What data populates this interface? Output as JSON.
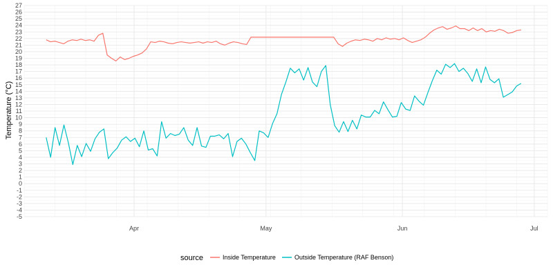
{
  "chart_data": {
    "type": "line",
    "title": "",
    "xlabel": "",
    "ylabel": "Temperature (°C)",
    "x_start": "2021-03-12",
    "x_end": "2021-06-28",
    "xlim": [
      "2021-03-07",
      "2021-07-04"
    ],
    "ylim": [
      -5,
      27
    ],
    "grid": true,
    "legend_position": "bottom",
    "legend_title": "source",
    "x_ticks": [
      {
        "date": "2021-04-01",
        "label": "Apr"
      },
      {
        "date": "2021-05-01",
        "label": "May"
      },
      {
        "date": "2021-06-01",
        "label": "Jun"
      },
      {
        "date": "2021-07-01",
        "label": "Jul"
      }
    ],
    "y_ticks": [
      -5,
      -4,
      -3,
      -2,
      -1,
      0,
      1,
      2,
      3,
      4,
      5,
      6,
      7,
      8,
      9,
      10,
      11,
      12,
      13,
      14,
      15,
      16,
      17,
      18,
      19,
      20,
      21,
      22,
      23,
      24,
      25,
      26,
      27
    ],
    "series": [
      {
        "name": "Inside Temperature",
        "color": "#F8766D",
        "values": [
          21.8,
          21.5,
          21.6,
          21.4,
          21.2,
          21.6,
          21.8,
          21.7,
          21.9,
          21.7,
          21.8,
          21.6,
          22.5,
          22.8,
          19.5,
          19.0,
          18.6,
          19.2,
          18.8,
          19.0,
          19.3,
          19.5,
          19.8,
          20.4,
          21.5,
          21.4,
          21.6,
          21.5,
          21.3,
          21.2,
          21.4,
          21.5,
          21.4,
          21.3,
          21.4,
          21.5,
          21.3,
          21.5,
          21.4,
          21.6,
          21.2,
          21.0,
          21.3,
          21.5,
          21.4,
          21.2,
          21.1,
          22.2,
          22.2,
          22.2,
          22.2,
          22.2,
          22.2,
          22.2,
          22.2,
          22.2,
          22.2,
          22.2,
          22.2,
          22.2,
          22.2,
          22.2,
          22.2,
          22.2,
          22.2,
          22.2,
          22.2,
          21.2,
          20.8,
          21.3,
          21.6,
          21.8,
          21.7,
          21.9,
          21.8,
          21.6,
          22.0,
          21.8,
          22.1,
          21.9,
          22.0,
          21.8,
          22.1,
          21.7,
          21.4,
          21.6,
          21.8,
          22.2,
          22.8,
          23.3,
          23.6,
          23.8,
          23.4,
          23.6,
          23.9,
          23.5,
          23.5,
          23.2,
          23.6,
          23.2,
          23.5,
          23.0,
          23.2,
          23.1,
          23.4,
          23.2,
          22.8,
          22.9,
          23.2,
          23.3
        ]
      },
      {
        "name": "Outside Temperature (RAF Benson)",
        "color": "#00BFC4",
        "values": [
          7.0,
          4.0,
          8.5,
          5.8,
          8.9,
          6.2,
          2.9,
          5.8,
          4.1,
          6.1,
          4.9,
          6.8,
          7.8,
          8.3,
          3.8,
          4.7,
          5.4,
          6.6,
          7.1,
          6.4,
          6.9,
          5.6,
          8.0,
          5.1,
          5.3,
          4.2,
          9.4,
          6.9,
          7.6,
          7.3,
          7.5,
          8.5,
          6.6,
          5.8,
          8.5,
          5.7,
          5.5,
          7.2,
          7.2,
          7.4,
          6.8,
          7.6,
          4.1,
          6.4,
          6.9,
          6.0,
          4.7,
          3.5,
          8.0,
          7.7,
          7.0,
          9.1,
          10.6,
          13.5,
          15.4,
          17.5,
          16.8,
          17.4,
          15.7,
          17.6,
          15.4,
          14.7,
          17.0,
          17.9,
          12.0,
          8.8,
          7.8,
          9.4,
          7.9,
          9.6,
          8.3,
          10.4,
          10.1,
          10.1,
          11.1,
          10.6,
          12.4,
          11.2,
          10.1,
          10.2,
          12.3,
          11.3,
          11.1,
          13.3,
          12.5,
          11.9,
          13.8,
          15.6,
          17.2,
          16.6,
          18.1,
          17.6,
          18.2,
          17.0,
          17.5,
          16.7,
          15.5,
          17.4,
          15.3,
          17.7,
          15.8,
          15.3,
          15.9,
          13.1,
          13.5,
          13.9,
          14.8,
          15.2
        ]
      }
    ]
  }
}
